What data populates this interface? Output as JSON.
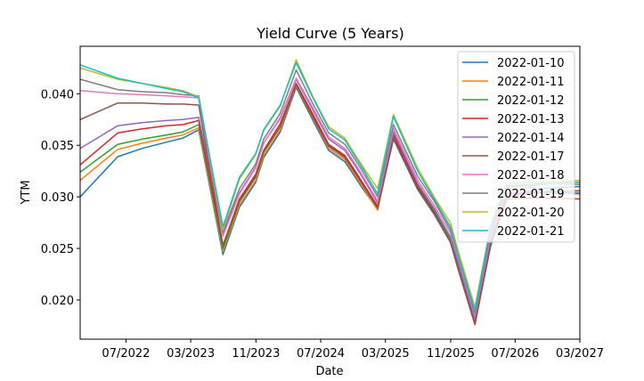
{
  "chart_data": {
    "type": "line",
    "title": "Yield Curve (5 Years)",
    "xlabel": "Date",
    "ylabel": "YTM",
    "x_range": [
      "2022-01-10",
      "2027-03-01"
    ],
    "ylim": [
      0.0162,
      0.0446
    ],
    "x_ticks": [
      {
        "date": "2022-07-01",
        "label": "07/2022"
      },
      {
        "date": "2023-03-01",
        "label": "03/2023"
      },
      {
        "date": "2023-11-01",
        "label": "11/2023"
      },
      {
        "date": "2024-07-01",
        "label": "07/2024"
      },
      {
        "date": "2025-03-01",
        "label": "03/2025"
      },
      {
        "date": "2025-11-01",
        "label": "11/2025"
      },
      {
        "date": "2026-07-01",
        "label": "07/2026"
      },
      {
        "date": "2027-03-01",
        "label": "03/2027"
      }
    ],
    "y_ticks": [
      {
        "value": 0.02,
        "label": "0.020"
      },
      {
        "value": 0.025,
        "label": "0.025"
      },
      {
        "value": 0.03,
        "label": "0.030"
      },
      {
        "value": 0.035,
        "label": "0.035"
      },
      {
        "value": 0.04,
        "label": "0.040"
      }
    ],
    "grid": false,
    "legend_position": "top-right",
    "x": [
      "2022-01-10",
      "2022-05-31",
      "2022-08-31",
      "2022-11-30",
      "2023-01-31",
      "2023-03-31",
      "2023-06-30",
      "2023-08-31",
      "2023-10-31",
      "2023-11-30",
      "2024-01-31",
      "2024-03-31",
      "2024-05-31",
      "2024-07-31",
      "2024-09-30",
      "2024-10-31",
      "2024-11-30",
      "2025-01-31",
      "2025-03-31",
      "2025-06-30",
      "2025-08-31",
      "2025-10-31",
      "2025-11-30",
      "2026-01-31",
      "2026-03-31",
      "2026-05-31",
      "2026-09-30",
      "2027-03-01"
    ],
    "series": [
      {
        "name": "2022-01-10",
        "color": "#1f77b4",
        "values": [
          0.03,
          0.0339,
          0.0347,
          0.0353,
          0.0357,
          0.0365,
          0.0244,
          0.029,
          0.0314,
          0.0338,
          0.0363,
          0.0406,
          0.0375,
          0.0345,
          0.0334,
          0.0322,
          0.031,
          0.0288,
          0.0356,
          0.0307,
          0.0283,
          0.0256,
          0.023,
          0.0177,
          0.0252,
          0.03,
          0.0308,
          0.031
        ]
      },
      {
        "name": "2022-01-11",
        "color": "#ff7f0e",
        "values": [
          0.0316,
          0.0346,
          0.0352,
          0.0357,
          0.036,
          0.0367,
          0.0247,
          0.0292,
          0.0316,
          0.034,
          0.0365,
          0.0408,
          0.0377,
          0.0347,
          0.0336,
          0.0324,
          0.0312,
          0.0287,
          0.0358,
          0.0309,
          0.0285,
          0.0258,
          0.0232,
          0.0178,
          0.0254,
          0.0302,
          0.0312,
          0.0316
        ]
      },
      {
        "name": "2022-01-12",
        "color": "#2ca02c",
        "values": [
          0.0324,
          0.0351,
          0.0356,
          0.036,
          0.0363,
          0.037,
          0.025,
          0.0295,
          0.0319,
          0.0343,
          0.0368,
          0.041,
          0.038,
          0.035,
          0.0339,
          0.0327,
          0.0315,
          0.029,
          0.036,
          0.0311,
          0.0287,
          0.0259,
          0.0233,
          0.0177,
          0.0256,
          0.0301,
          0.0304,
          0.0303
        ]
      },
      {
        "name": "2022-01-13",
        "color": "#d62728",
        "values": [
          0.0331,
          0.0362,
          0.0366,
          0.0369,
          0.037,
          0.0374,
          0.0253,
          0.0298,
          0.0322,
          0.0345,
          0.0371,
          0.041,
          0.0381,
          0.0351,
          0.034,
          0.0328,
          0.0316,
          0.0291,
          0.036,
          0.031,
          0.0285,
          0.0256,
          0.0229,
          0.0176,
          0.0254,
          0.0298,
          0.0299,
          0.0298
        ]
      },
      {
        "name": "2022-01-14",
        "color": "#9467bd",
        "values": [
          0.0347,
          0.0369,
          0.0372,
          0.0374,
          0.0375,
          0.0377,
          0.0264,
          0.0304,
          0.0329,
          0.0352,
          0.0376,
          0.0414,
          0.0385,
          0.0356,
          0.0345,
          0.0333,
          0.0321,
          0.0294,
          0.0363,
          0.0313,
          0.0289,
          0.0261,
          0.0236,
          0.0181,
          0.0259,
          0.0303,
          0.0305,
          0.0304
        ]
      },
      {
        "name": "2022-01-17",
        "color": "#8c564b",
        "values": [
          0.0375,
          0.0391,
          0.0391,
          0.039,
          0.039,
          0.0389,
          0.0253,
          0.0296,
          0.032,
          0.0344,
          0.0368,
          0.0409,
          0.0378,
          0.0349,
          0.0338,
          0.0326,
          0.0314,
          0.0289,
          0.0357,
          0.0308,
          0.0284,
          0.0256,
          0.023,
          0.0177,
          0.0254,
          0.03,
          0.0305,
          0.0306
        ]
      },
      {
        "name": "2022-01-18",
        "color": "#e377c2",
        "values": [
          0.0403,
          0.04,
          0.0399,
          0.0398,
          0.0397,
          0.0396,
          0.0262,
          0.0303,
          0.0328,
          0.0352,
          0.0377,
          0.0415,
          0.0387,
          0.0358,
          0.0347,
          0.0335,
          0.0323,
          0.0296,
          0.0366,
          0.0316,
          0.0292,
          0.0265,
          0.024,
          0.0185,
          0.0262,
          0.0306,
          0.0312,
          0.0314
        ]
      },
      {
        "name": "2022-01-19",
        "color": "#7f7f7f",
        "values": [
          0.0414,
          0.0404,
          0.0402,
          0.0401,
          0.0399,
          0.0398,
          0.0266,
          0.0308,
          0.0332,
          0.0356,
          0.0381,
          0.0423,
          0.0391,
          0.0362,
          0.0351,
          0.0339,
          0.0327,
          0.03,
          0.037,
          0.032,
          0.0296,
          0.0268,
          0.0243,
          0.0187,
          0.0266,
          0.0309,
          0.0313,
          0.0312
        ]
      },
      {
        "name": "2022-01-20",
        "color": "#bcbd22",
        "values": [
          0.0425,
          0.0414,
          0.041,
          0.0406,
          0.0403,
          0.0397,
          0.0268,
          0.0317,
          0.0341,
          0.0364,
          0.0388,
          0.0433,
          0.0398,
          0.0368,
          0.0357,
          0.0344,
          0.0332,
          0.0308,
          0.038,
          0.0328,
          0.03,
          0.0275,
          0.0247,
          0.0193,
          0.0272,
          0.0313,
          0.0314,
          0.0316
        ]
      },
      {
        "name": "2022-01-21",
        "color": "#17becf",
        "values": [
          0.0428,
          0.0415,
          0.041,
          0.0405,
          0.0402,
          0.0396,
          0.0271,
          0.0319,
          0.0342,
          0.0365,
          0.0389,
          0.043,
          0.0397,
          0.0366,
          0.0355,
          0.0342,
          0.033,
          0.0303,
          0.0378,
          0.0325,
          0.0298,
          0.0271,
          0.0243,
          0.019,
          0.027,
          0.0311,
          0.0312,
          0.0314
        ]
      }
    ]
  }
}
